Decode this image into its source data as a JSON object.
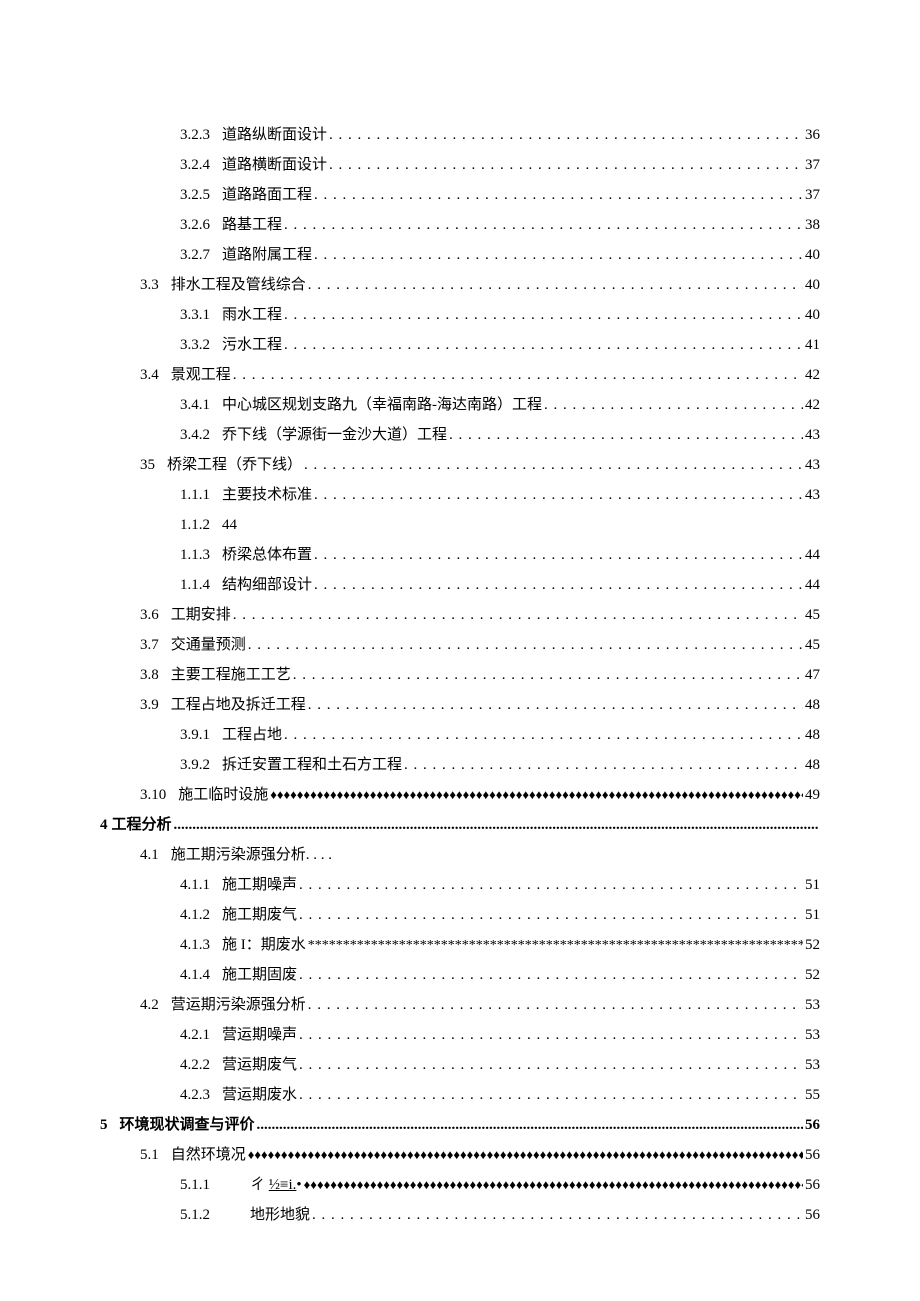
{
  "entries": [
    {
      "level": 3,
      "num": "3.2.3",
      "title": "道路纵断面设计",
      "page": "36",
      "dot_style": "periods"
    },
    {
      "level": 3,
      "num": "3.2.4",
      "title": "道路横断面设计",
      "page": "37",
      "dot_style": "periods"
    },
    {
      "level": 3,
      "num": "3.2.5",
      "title": "道路路面工程",
      "page": "37",
      "dot_style": "periods"
    },
    {
      "level": 3,
      "num": "3.2.6",
      "title": "路基工程",
      "page": "38",
      "dot_style": "periods"
    },
    {
      "level": 3,
      "num": "3.2.7",
      "title": "道路附属工程",
      "page": "40",
      "dot_style": "periods"
    },
    {
      "level": 2,
      "num": "3.3",
      "title": "排水工程及管线综合",
      "page": "40",
      "dot_style": "periods"
    },
    {
      "level": 3,
      "num": "3.3.1",
      "title": "雨水工程",
      "page": "40",
      "dot_style": "periods"
    },
    {
      "level": 3,
      "num": "3.3.2",
      "title": "污水工程",
      "page": "41",
      "dot_style": "periods"
    },
    {
      "level": 2,
      "num": "3.4",
      "title": "景观工程",
      "page": "42",
      "dot_style": "periods"
    },
    {
      "level": 3,
      "num": "3.4.1",
      "title": "中心城区规划支路九（幸福南路-海达南路）工程",
      "page": "42",
      "dot_style": "periods"
    },
    {
      "level": 3,
      "num": "3.4.2",
      "title": "乔下线（学源街一金沙大道）工程",
      "page": "43",
      "dot_style": "periods"
    },
    {
      "level": 2,
      "num": "35",
      "title": "桥梁工程（乔下线）",
      "page": "43",
      "dot_style": "periods"
    },
    {
      "level": 3,
      "num": "1.1.1",
      "title": "主要技术标准",
      "page": "43",
      "dot_style": "periods"
    },
    {
      "level": 3,
      "num": "1.1.2",
      "title": "44",
      "page": "",
      "dot_style": "none"
    },
    {
      "level": 3,
      "num": "1.1.3",
      "title": "桥梁总体布置",
      "page": "44",
      "dot_style": "periods"
    },
    {
      "level": 3,
      "num": "1.1.4",
      "title": "结构细部设计",
      "page": "44",
      "dot_style": "periods"
    },
    {
      "level": 2,
      "num": "3.6",
      "title": "工期安排",
      "page": "45",
      "dot_style": "periods"
    },
    {
      "level": 2,
      "num": "3.7",
      "title": "交通量预测",
      "page": "45",
      "dot_style": "periods"
    },
    {
      "level": 2,
      "num": "3.8",
      "title": "主要工程施工工艺",
      "page": "47",
      "dot_style": "periods"
    },
    {
      "level": 2,
      "num": "3.9",
      "title": "工程占地及拆迁工程",
      "page": "48",
      "dot_style": "periods"
    },
    {
      "level": 3,
      "num": "3.9.1",
      "title": "工程占地",
      "page": "48",
      "dot_style": "periods"
    },
    {
      "level": 3,
      "num": "3.9.2",
      "title": "拆迁安置工程和土石方工程",
      "page": "48",
      "dot_style": "periods"
    },
    {
      "level": 2,
      "num": "3.10",
      "title": "施工临时设施",
      "page": "49",
      "dot_style": "diamonds"
    },
    {
      "level": 1,
      "num": "4",
      "title": "工程分析",
      "page": "",
      "dot_style": "dense"
    },
    {
      "level": 2,
      "num": "4.1",
      "title": "施工期污染源强分析. . . .",
      "page": "",
      "dot_style": "none"
    },
    {
      "level": 3,
      "num": "4.1.1",
      "title": "施工期噪声",
      "page": "51",
      "dot_style": "periods"
    },
    {
      "level": 3,
      "num": "4.1.2",
      "title": "施工期废气",
      "page": "51",
      "dot_style": "periods"
    },
    {
      "level": 3,
      "num": "4.1.3",
      "title": "施 I：期废水",
      "page": "52",
      "dot_style": "asterisks"
    },
    {
      "level": 3,
      "num": "4.1.4",
      "title": "施工期固废",
      "page": "52",
      "dot_style": "periods"
    },
    {
      "level": 2,
      "num": "4.2",
      "title": "营运期污染源强分析",
      "page": "53",
      "dot_style": "periods"
    },
    {
      "level": 3,
      "num": "4.2.1",
      "title": "营运期噪声",
      "page": "53",
      "dot_style": "periods"
    },
    {
      "level": 3,
      "num": "4.2.2",
      "title": "营运期废气",
      "page": "53",
      "dot_style": "periods"
    },
    {
      "level": 3,
      "num": "4.2.3",
      "title": "营运期废水",
      "page": "55",
      "dot_style": "periods"
    },
    {
      "level": 1,
      "num": "5",
      "title": "环境现状调查与评价",
      "page": "56",
      "dot_style": "dense"
    },
    {
      "level": 2,
      "num": "5.1",
      "title": "自然环境况",
      "page": "56",
      "dot_style": "diamonds"
    },
    {
      "level": 3,
      "num": "5.1.1",
      "title": "",
      "title_special": "ㄔ <u>½≡i.</u>•",
      "page": "56",
      "dot_style": "diamonds",
      "extra_indent": true
    },
    {
      "level": 3,
      "num": "5.1.2",
      "title": "地形地貌",
      "page": "56",
      "dot_style": "periods",
      "extra_indent": true
    }
  ]
}
